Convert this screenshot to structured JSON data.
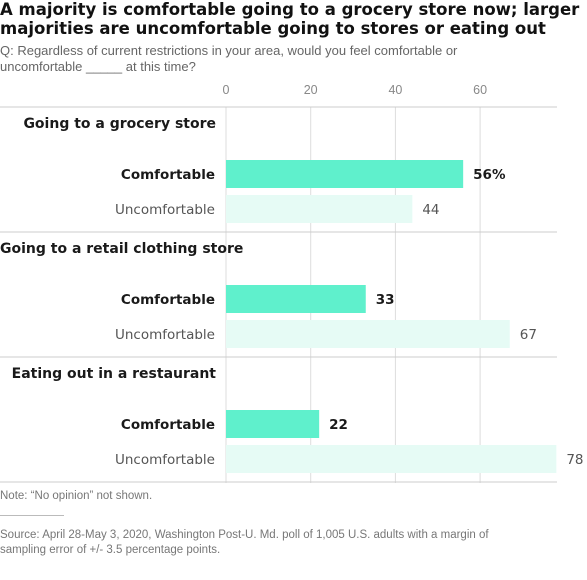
{
  "title_lines": [
    "A majority is comfortable going to a grocery store now; larger",
    "majorities are uncomfortable going to stores or eating out"
  ],
  "question_lines": [
    "Q: Regardless of current restrictions in your area, would you feel comfortable or",
    "uncomfortable _____ at this time?"
  ],
  "note": "Note: “No opinion” not shown.",
  "source_lines": [
    "Source: April 28-May 3, 2020, Washington Post-U. Md. poll of 1,005 U.S. adults with a margin of",
    "sampling error of +/- 3.5 percentage points."
  ],
  "colors": {
    "comfortable": "#5ff0cc",
    "uncomfortable": "#e6fbf5",
    "grid": "#dddddd",
    "separator": "#cccccc",
    "axis_text": "#888888"
  },
  "chart_data": {
    "type": "bar",
    "orientation": "horizontal",
    "xlim": [
      0,
      78
    ],
    "ticks": [
      0,
      20,
      40,
      60
    ],
    "tick_labels": [
      "0",
      "20",
      "40",
      "60"
    ],
    "groups": [
      {
        "label": "Going to a grocery store",
        "bars": [
          {
            "label": "Comfortable",
            "value": 56,
            "value_label": "56%",
            "series": "comfortable"
          },
          {
            "label": "Uncomfortable",
            "value": 44,
            "value_label": "44",
            "series": "uncomfortable"
          }
        ]
      },
      {
        "label": "Going to a retail clothing store",
        "bars": [
          {
            "label": "Comfortable",
            "value": 33,
            "value_label": "33",
            "series": "comfortable"
          },
          {
            "label": "Uncomfortable",
            "value": 67,
            "value_label": "67",
            "series": "uncomfortable"
          }
        ]
      },
      {
        "label": "Eating out in a restaurant",
        "bars": [
          {
            "label": "Comfortable",
            "value": 22,
            "value_label": "22",
            "series": "comfortable"
          },
          {
            "label": "Uncomfortable",
            "value": 78,
            "value_label": "78",
            "series": "uncomfortable"
          }
        ]
      }
    ]
  }
}
